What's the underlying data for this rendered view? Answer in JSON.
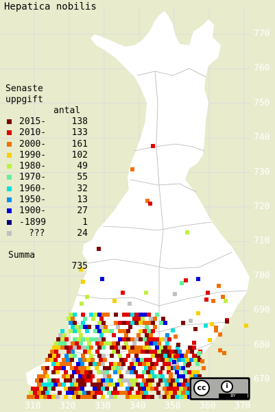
{
  "title": "Hepatica nobilis",
  "legend": {
    "heading_1": "Senaste",
    "heading_2": "uppgift",
    "count_header": "antal",
    "entries": [
      {
        "label": "2015-",
        "count": "138",
        "color": "#800000"
      },
      {
        "label": "2010-",
        "count": "133",
        "color": "#e00000"
      },
      {
        "label": "2000-",
        "count": "161",
        "color": "#f07000"
      },
      {
        "label": "1990-",
        "count": "102",
        "color": "#f8d000"
      },
      {
        "label": "1980-",
        "count": "49",
        "color": "#c0f040"
      },
      {
        "label": "1970-",
        "count": "55",
        "color": "#60f0a0"
      },
      {
        "label": "1960-",
        "count": "32",
        "color": "#00e0e0"
      },
      {
        "label": "1950-",
        "count": "13",
        "color": "#0090f0"
      },
      {
        "label": "1900-",
        "count": "27",
        "color": "#0000e0"
      },
      {
        "label": "-1899",
        "count": "1",
        "color": "#000080"
      },
      {
        "label": "???",
        "count": "24",
        "color": "#c0c0c0"
      }
    ],
    "total_label": "Summa",
    "total_count": "735"
  },
  "y_axis_labels": [
    "770",
    "760",
    "750",
    "740",
    "730",
    "720",
    "710",
    "700",
    "690",
    "680",
    "670"
  ],
  "x_axis_labels": [
    "310",
    "320",
    "330",
    "340",
    "350",
    "360",
    "370"
  ],
  "license_badge": {
    "cc": "cc",
    "by": "BY"
  },
  "colors": {
    "background": "#e8ebcc",
    "land": "#ffffff",
    "grid": "#c8c8c8"
  }
}
